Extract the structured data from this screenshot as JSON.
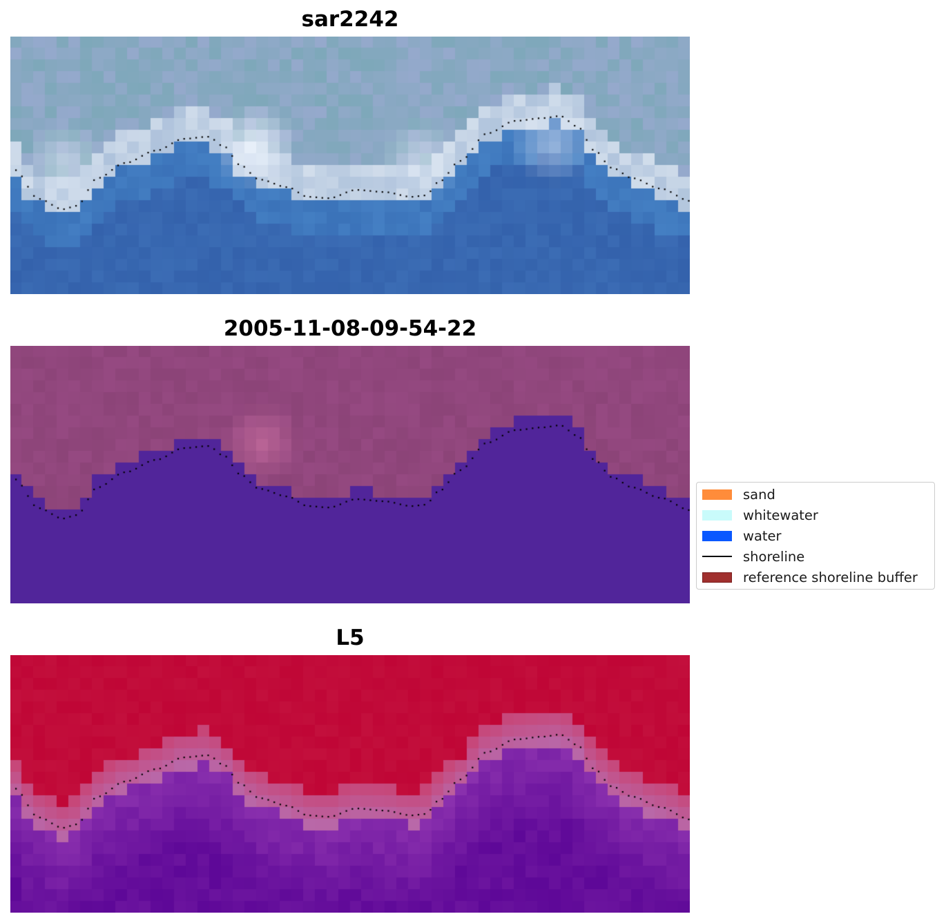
{
  "panels": [
    {
      "title": "sar2242",
      "style": "rgb"
    },
    {
      "title": "2005-11-08-09-54-22",
      "style": "classification"
    },
    {
      "title": "L5",
      "style": "index"
    }
  ],
  "legend": {
    "items": [
      {
        "label": "sand",
        "icon": "patch",
        "color": "#ff8c3a"
      },
      {
        "label": "whitewater",
        "icon": "patch",
        "color": "#c9fbfb"
      },
      {
        "label": "water",
        "icon": "patch",
        "color": "#0a58ff"
      },
      {
        "label": "shoreline",
        "icon": "line",
        "color": "#000000"
      },
      {
        "label": "reference shoreline buffer",
        "icon": "patch",
        "color": "#a0302e",
        "edge": "#7a1d1d"
      }
    ]
  },
  "colors": {
    "water_class": "#51259a",
    "land_class": "#8c4478",
    "index_high": "#c00636",
    "index_low": "#5e0898",
    "shoreline_dots": "#000000"
  }
}
